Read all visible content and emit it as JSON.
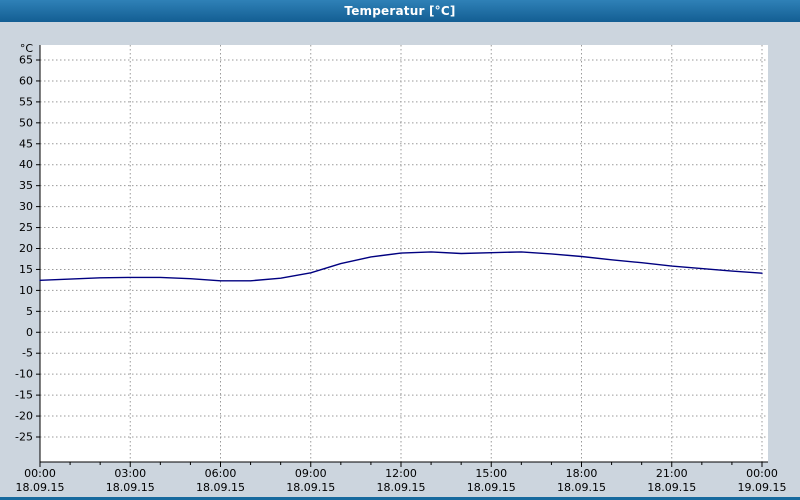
{
  "window": {
    "title_bar": {
      "title": "Temperatur [°C]"
    }
  },
  "chart_data": {
    "type": "line",
    "title": "Temperatur [°C]",
    "series_name": "Temperatur",
    "ylabel": "°C",
    "xlabel": "",
    "ylim": [
      -25,
      65
    ],
    "ytick_step": 5,
    "grid": true,
    "legend": "none",
    "yticks": [
      65,
      60,
      55,
      50,
      45,
      40,
      35,
      30,
      25,
      20,
      15,
      10,
      5,
      0,
      -5,
      -10,
      -15,
      -20,
      -25
    ],
    "xticks": [
      {
        "hour": 0,
        "time": "00:00",
        "date": "18.09.15"
      },
      {
        "hour": 3,
        "time": "03:00",
        "date": "18.09.15"
      },
      {
        "hour": 6,
        "time": "06:00",
        "date": "18.09.15"
      },
      {
        "hour": 9,
        "time": "09:00",
        "date": "18.09.15"
      },
      {
        "hour": 12,
        "time": "12:00",
        "date": "18.09.15"
      },
      {
        "hour": 15,
        "time": "15:00",
        "date": "18.09.15"
      },
      {
        "hour": 18,
        "time": "18:00",
        "date": "18.09.15"
      },
      {
        "hour": 21,
        "time": "21:00",
        "date": "18.09.15"
      },
      {
        "hour": 24,
        "time": "00:00",
        "date": "19.09.15"
      }
    ],
    "x_hours": [
      0,
      1,
      2,
      3,
      4,
      5,
      6,
      7,
      8,
      9,
      10,
      11,
      12,
      13,
      14,
      15,
      16,
      17,
      18,
      19,
      20,
      21,
      22,
      23,
      24
    ],
    "values": [
      12.4,
      12.7,
      13.0,
      13.1,
      13.1,
      12.8,
      12.3,
      12.3,
      12.9,
      14.2,
      16.4,
      18.0,
      18.9,
      19.2,
      18.8,
      19.0,
      19.2,
      18.7,
      18.1,
      17.3,
      16.6,
      15.8,
      15.2,
      14.6,
      14.1
    ],
    "colors": {
      "line": "#000080",
      "background": "#ccd5de",
      "plot_bg": "#ffffff",
      "grid": "#9a9a9a",
      "axis": "#000000",
      "tick_text": "#000000",
      "title_bar": "#176a9e",
      "title_text": "#ffffff"
    }
  }
}
